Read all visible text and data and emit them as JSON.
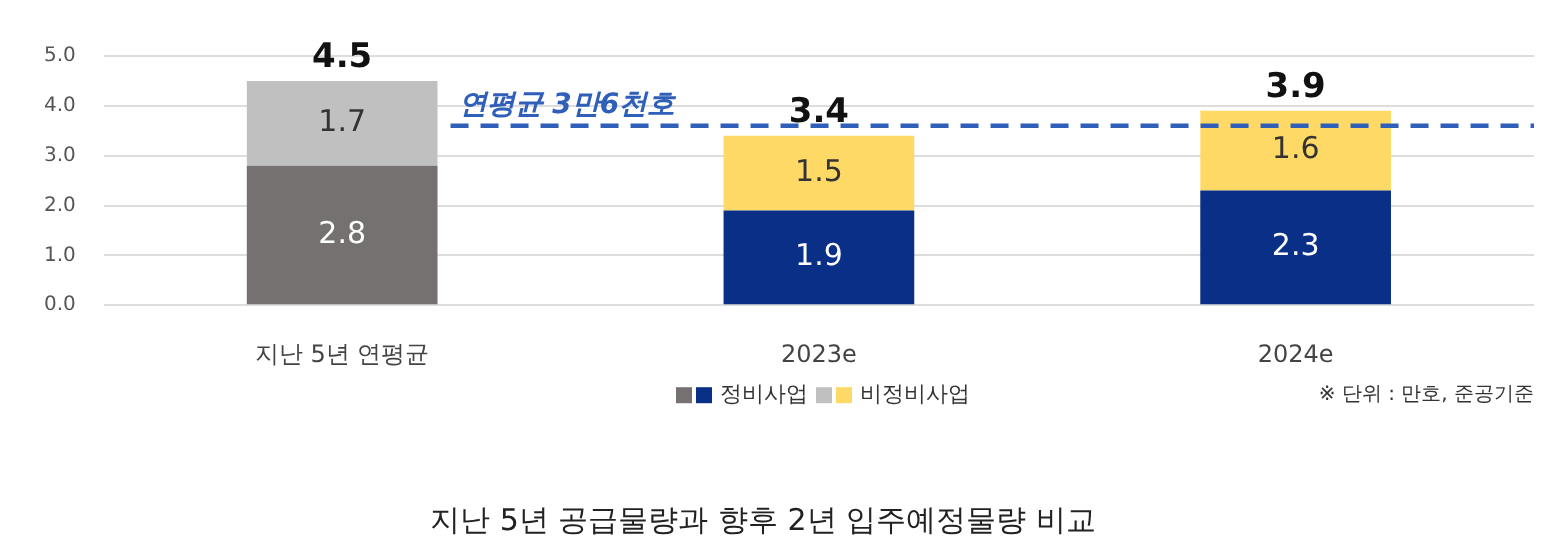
{
  "chart_data": {
    "type": "bar",
    "title": "지난 5년 공급물량과 향후 2년 입주예정물량 비교",
    "categories": [
      "지난 5년 연평균",
      "2023e",
      "2024e"
    ],
    "series": [
      {
        "name": "정비사업",
        "colors": [
          "#757170",
          "#0a2f86",
          "#0a2f86"
        ],
        "values": [
          2.8,
          1.9,
          2.3
        ]
      },
      {
        "name": "비정비사업",
        "colors": [
          "#c0c0c0",
          "#ffd966",
          "#ffd966"
        ],
        "values": [
          1.7,
          1.5,
          1.6
        ]
      }
    ],
    "stacked": true,
    "data_labels": true,
    "totals": [
      "4.5",
      "3.4",
      "3.9"
    ],
    "ylim": [
      0,
      5
    ],
    "yticks": [
      {
        "value": 0,
        "label": "0.0"
      },
      {
        "value": 1,
        "label": "1.0"
      },
      {
        "value": 2,
        "label": "2.0"
      },
      {
        "value": 3,
        "label": "3.0"
      },
      {
        "value": 4,
        "label": "4.0"
      },
      {
        "value": 5,
        "label": "5.0"
      }
    ],
    "ref_lines": [
      {
        "axis": "y",
        "value": 3.6,
        "label": "연평균 3만6천호",
        "color": "#2f5fb8",
        "line_style": "dashed"
      }
    ],
    "annotations": [
      "※ 단위 : 만호, 준공기준"
    ],
    "grid": "y",
    "legend": "bottom"
  }
}
